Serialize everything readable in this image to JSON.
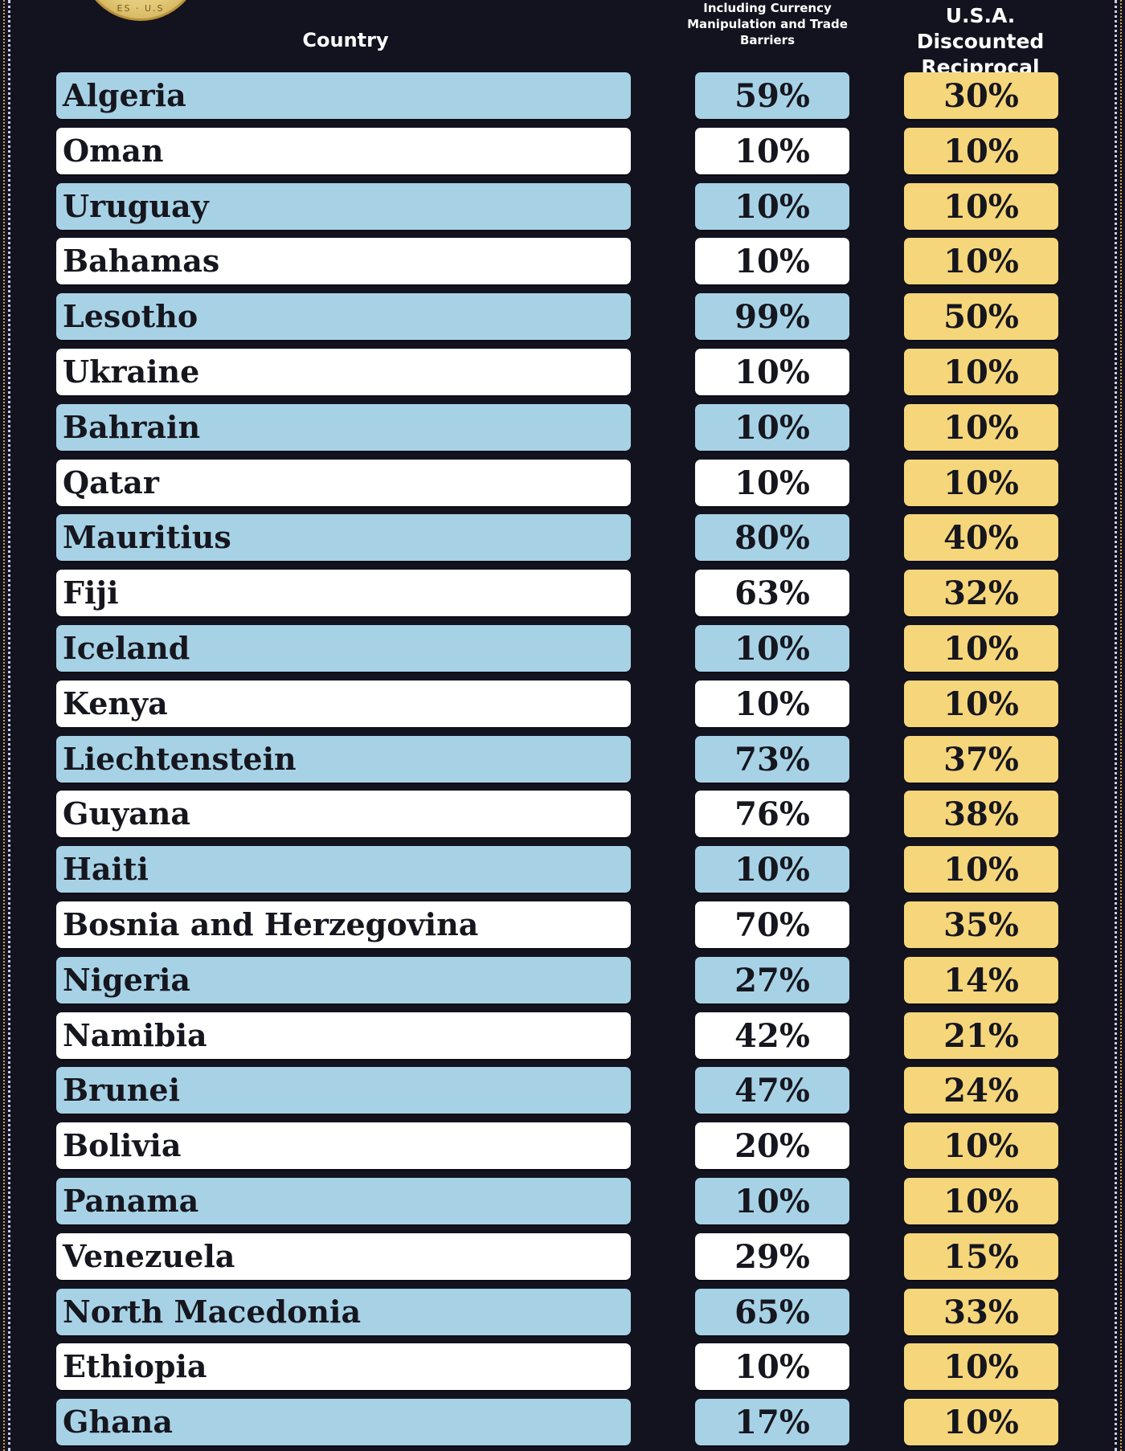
{
  "headers": {
    "country": "Country",
    "col2": "Including Currency Manipulation and Trade Barriers",
    "col3_line1": "U.S.A. Discounted",
    "col3_line2": "Reciprocal Tariffs"
  },
  "seal": {
    "text": "ES · U.S"
  },
  "colors": {
    "background": "#13131f",
    "row_blue": "#a7d2e6",
    "row_white": "#ffffff",
    "tariff_gold": "#f5d67a"
  },
  "chart_data": {
    "type": "table",
    "columns": [
      "Country",
      "Including Currency Manipulation and Trade Barriers",
      "U.S.A. Discounted Reciprocal Tariffs"
    ],
    "rows": [
      [
        "Algeria",
        "59%",
        "30%"
      ],
      [
        "Oman",
        "10%",
        "10%"
      ],
      [
        "Uruguay",
        "10%",
        "10%"
      ],
      [
        "Bahamas",
        "10%",
        "10%"
      ],
      [
        "Lesotho",
        "99%",
        "50%"
      ],
      [
        "Ukraine",
        "10%",
        "10%"
      ],
      [
        "Bahrain",
        "10%",
        "10%"
      ],
      [
        "Qatar",
        "10%",
        "10%"
      ],
      [
        "Mauritius",
        "80%",
        "40%"
      ],
      [
        "Fiji",
        "63%",
        "32%"
      ],
      [
        "Iceland",
        "10%",
        "10%"
      ],
      [
        "Kenya",
        "10%",
        "10%"
      ],
      [
        "Liechtenstein",
        "73%",
        "37%"
      ],
      [
        "Guyana",
        "76%",
        "38%"
      ],
      [
        "Haiti",
        "10%",
        "10%"
      ],
      [
        "Bosnia and Herzegovina",
        "70%",
        "35%"
      ],
      [
        "Nigeria",
        "27%",
        "14%"
      ],
      [
        "Namibia",
        "42%",
        "21%"
      ],
      [
        "Brunei",
        "47%",
        "24%"
      ],
      [
        "Bolivia",
        "20%",
        "10%"
      ],
      [
        "Panama",
        "10%",
        "10%"
      ],
      [
        "Venezuela",
        "29%",
        "15%"
      ],
      [
        "North Macedonia",
        "65%",
        "33%"
      ],
      [
        "Ethiopia",
        "10%",
        "10%"
      ],
      [
        "Ghana",
        "17%",
        "10%"
      ]
    ]
  }
}
